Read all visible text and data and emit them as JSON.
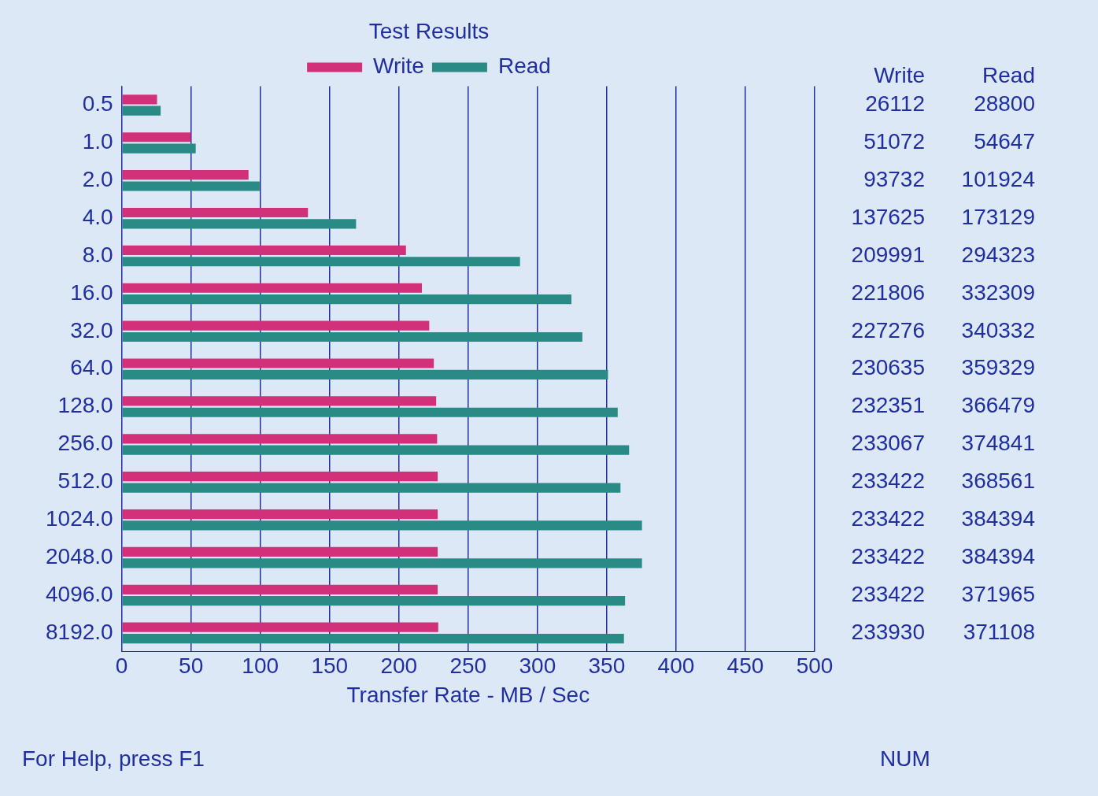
{
  "chart_data": {
    "type": "bar",
    "orientation": "horizontal",
    "title": "Test Results",
    "xlabel": "Transfer Rate - MB / Sec",
    "categories": [
      "0.5",
      "1.0",
      "2.0",
      "4.0",
      "8.0",
      "16.0",
      "32.0",
      "64.0",
      "128.0",
      "256.0",
      "512.0",
      "1024.0",
      "2048.0",
      "4096.0",
      "8192.0"
    ],
    "series": [
      {
        "name": "Write",
        "color": "#d2307a",
        "values": [
          25.5,
          49.9,
          91.5,
          134.4,
          205.1,
          216.6,
          221.9,
          225.2,
          226.9,
          227.6,
          228.0,
          228.0,
          228.0,
          228.0,
          228.4
        ]
      },
      {
        "name": "Read",
        "color": "#2a8a86",
        "values": [
          28.1,
          53.4,
          99.5,
          169.1,
          287.4,
          324.5,
          332.4,
          350.9,
          357.9,
          366.1,
          359.9,
          375.4,
          375.4,
          363.2,
          362.4
        ]
      }
    ],
    "xlim": [
      0,
      500
    ],
    "xticks": [
      0,
      50,
      100,
      150,
      200,
      250,
      300,
      350,
      400,
      450,
      500
    ],
    "grid": "x",
    "legend": "top",
    "annotations": [
      "For Help, press F1",
      "NUM",
      "26112",
      "28800",
      "51072",
      "54647",
      "93732",
      "101924",
      "137625",
      "173129",
      "209991",
      "294323",
      "221806",
      "332309",
      "227276",
      "340332",
      "230635",
      "359329",
      "232351",
      "366479",
      "233067",
      "374841",
      "233422",
      "368561",
      "233422",
      "384394",
      "233422",
      "384394",
      "233422",
      "371965",
      "233930",
      "371108"
    ]
  }
}
